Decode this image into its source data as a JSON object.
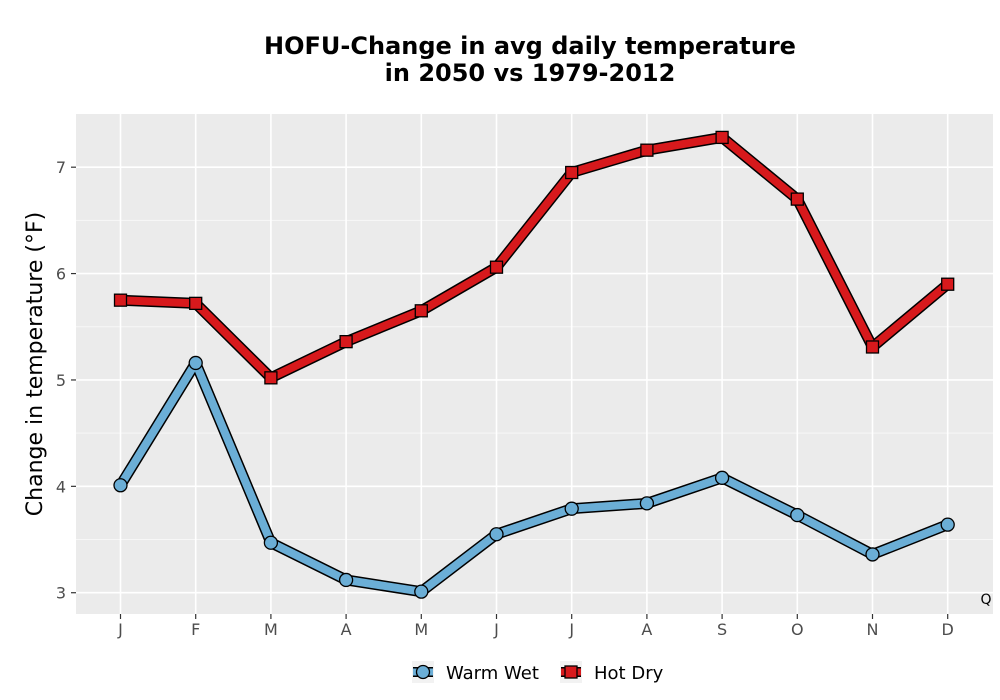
{
  "chart_data": {
    "type": "line",
    "title": [
      "HOFU-Change in avg daily temperature",
      "in 2050 vs 1979-2012"
    ],
    "xlabel": "",
    "ylabel": "Change in temperature (°F)",
    "categories": [
      "J",
      "F",
      "M",
      "A",
      "M",
      "J",
      "J",
      "A",
      "S",
      "O",
      "N",
      "D"
    ],
    "ylim": [
      2.8,
      7.5
    ],
    "yticks": [
      3,
      4,
      5,
      6,
      7
    ],
    "grid": true,
    "legend_position": "bottom",
    "series": [
      {
        "name": "Warm Wet",
        "marker": "circle",
        "color": "#6baed6",
        "values": [
          4.01,
          5.16,
          3.47,
          3.12,
          3.01,
          3.55,
          3.79,
          3.84,
          4.08,
          3.73,
          3.36,
          3.64
        ]
      },
      {
        "name": "Hot Dry",
        "marker": "square",
        "color": "#d7191c",
        "values": [
          5.75,
          5.72,
          5.02,
          5.36,
          5.65,
          6.06,
          6.95,
          7.16,
          7.28,
          6.7,
          5.31,
          5.9
        ]
      }
    ],
    "annotation": "Q"
  }
}
